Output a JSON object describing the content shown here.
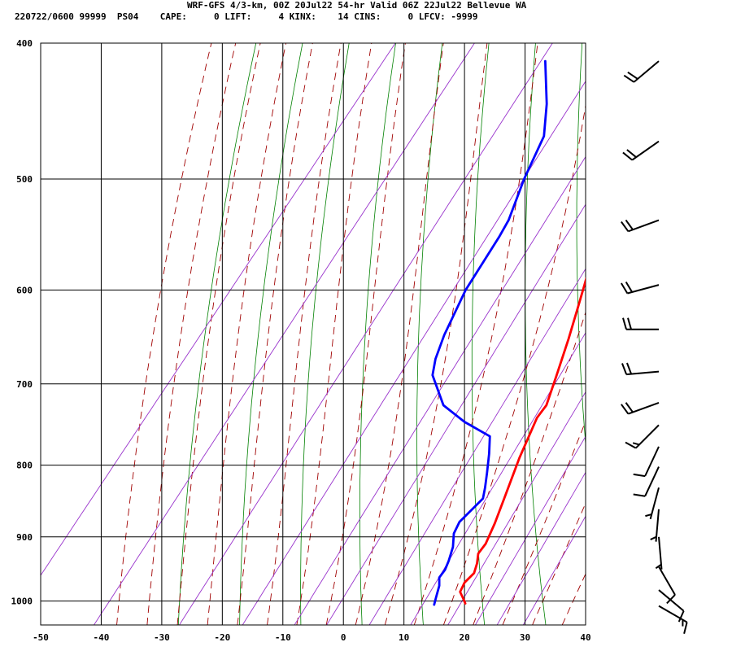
{
  "header": {
    "title": "WRF-GFS 4/3-km, 00Z 20Jul22 54-hr Valid 06Z 22Jul22 Bellevue WA",
    "subtitle": "220722/0600 99999  PS04    CAPE:     0 LIFT:     4 KINX:    14 CINS:     0 LFCV: -9999"
  },
  "colors": {
    "temperature": "#ff0000",
    "dewpoint": "#0000ff",
    "dry_adiabat": "#008000",
    "moist_adiabat": "#a00000",
    "mixing_ratio": "#9933cc",
    "grid": "#000000"
  },
  "chart_data": {
    "type": "line",
    "title": "",
    "xlabel": "",
    "ylabel": "",
    "x_range": [
      -50,
      40
    ],
    "p_range": [
      1040,
      400
    ],
    "x_ticks": [
      -50,
      -40,
      -30,
      -20,
      -10,
      0,
      10,
      20,
      30,
      40
    ],
    "p_ticks": [
      400,
      500,
      600,
      700,
      800,
      900,
      1000
    ],
    "grid": true,
    "series": [
      {
        "key": "temperature",
        "points": [
          [
            17.5,
            1004
          ],
          [
            16.8,
            998
          ],
          [
            15.2,
            985
          ],
          [
            14.8,
            970
          ],
          [
            15.2,
            955
          ],
          [
            14.5,
            940
          ],
          [
            13.5,
            925
          ],
          [
            13.5,
            910
          ],
          [
            12.5,
            880
          ],
          [
            11,
            845
          ],
          [
            8.5,
            790
          ],
          [
            6.5,
            740
          ],
          [
            6.5,
            725
          ],
          [
            4.5,
            690
          ],
          [
            2,
            650
          ],
          [
            -0.5,
            615
          ],
          [
            -2,
            595
          ],
          [
            -4,
            570
          ],
          [
            -7,
            535
          ],
          [
            -10,
            508
          ],
          [
            -15,
            470
          ],
          [
            -27,
            418
          ]
        ]
      },
      {
        "key": "dewpoint",
        "points": [
          [
            12.5,
            1006
          ],
          [
            12,
            996
          ],
          [
            11,
            975
          ],
          [
            10,
            962
          ],
          [
            10,
            950
          ],
          [
            9.5,
            936
          ],
          [
            8.5,
            915
          ],
          [
            7,
            895
          ],
          [
            6.5,
            878
          ],
          [
            7.5,
            845
          ],
          [
            6.5,
            830
          ],
          [
            5,
            810
          ],
          [
            3,
            785
          ],
          [
            1,
            763
          ],
          [
            -5,
            745
          ],
          [
            -10.5,
            725
          ],
          [
            -16,
            690
          ],
          [
            -17.5,
            672
          ],
          [
            -19,
            646
          ],
          [
            -21,
            600
          ],
          [
            -22,
            550
          ],
          [
            -22.5,
            535
          ],
          [
            -25,
            500
          ],
          [
            -27,
            466
          ],
          [
            -30.5,
            442
          ],
          [
            -36,
            412
          ]
        ]
      }
    ],
    "wind_barbs": [
      {
        "p": 412,
        "dir": 230,
        "kt": 20
      },
      {
        "p": 470,
        "dir": 235,
        "kt": 20
      },
      {
        "p": 535,
        "dir": 250,
        "kt": 20
      },
      {
        "p": 595,
        "dir": 255,
        "kt": 20
      },
      {
        "p": 640,
        "dir": 270,
        "kt": 20
      },
      {
        "p": 686,
        "dir": 265,
        "kt": 20
      },
      {
        "p": 722,
        "dir": 250,
        "kt": 20
      },
      {
        "p": 749,
        "dir": 225,
        "kt": 15
      },
      {
        "p": 776,
        "dir": 205,
        "kt": 10
      },
      {
        "p": 802,
        "dir": 205,
        "kt": 10
      },
      {
        "p": 830,
        "dir": 195,
        "kt": 5
      },
      {
        "p": 860,
        "dir": 185,
        "kt": 5
      },
      {
        "p": 900,
        "dir": 175,
        "kt": 5
      },
      {
        "p": 945,
        "dir": 150,
        "kt": 10
      },
      {
        "p": 982,
        "dir": 130,
        "kt": 10
      },
      {
        "p": 1008,
        "dir": 120,
        "kt": 15
      }
    ]
  }
}
